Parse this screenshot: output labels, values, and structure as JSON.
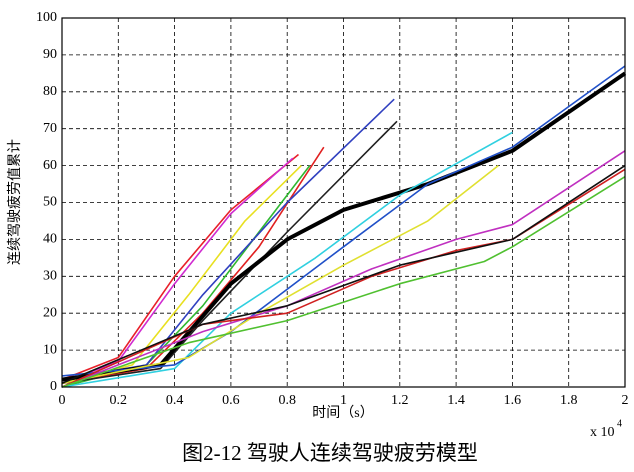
{
  "chart_data": {
    "type": "line",
    "title": "图2-12 驾驶人连续驾驶疲劳模型",
    "x_label": "时间（s）",
    "y_label": "连续驾驶疲劳值累计",
    "x_multiplier": "x 10",
    "x_multiplier_exp": "4",
    "xlim": [
      0,
      2
    ],
    "ylim": [
      0,
      100
    ],
    "xticks": [
      0,
      0.2,
      0.4,
      0.6,
      0.8,
      1,
      1.2,
      1.4,
      1.6,
      1.8,
      2
    ],
    "yticks": [
      0,
      10,
      20,
      30,
      40,
      50,
      60,
      70,
      80,
      90,
      100
    ],
    "grid": true,
    "series": [
      {
        "color": "#e8202a",
        "x": [
          0,
          0.2,
          0.4,
          0.6,
          0.84
        ],
        "values": [
          2,
          8,
          30,
          48,
          63
        ]
      },
      {
        "color": "#d02ad0",
        "x": [
          0,
          0.2,
          0.4,
          0.6,
          0.82
        ],
        "values": [
          1,
          7,
          28,
          47,
          62
        ]
      },
      {
        "color": "#e8e020",
        "x": [
          0,
          0.25,
          0.45,
          0.65,
          0.85
        ],
        "values": [
          1,
          6,
          25,
          45,
          60
        ]
      },
      {
        "color": "#30b830",
        "x": [
          0,
          0.3,
          0.5,
          0.7,
          0.88
        ],
        "values": [
          0,
          6,
          22,
          42,
          60
        ]
      },
      {
        "color": "#e02020",
        "x": [
          0,
          0.3,
          0.5,
          0.7,
          0.93
        ],
        "values": [
          1,
          5,
          20,
          38,
          65
        ]
      },
      {
        "color": "#3040c0",
        "x": [
          0,
          0.3,
          0.5,
          0.8,
          1.18
        ],
        "values": [
          2,
          6,
          25,
          50,
          78
        ]
      },
      {
        "color": "#202020",
        "x": [
          0,
          0.35,
          0.5,
          0.8,
          1.19
        ],
        "values": [
          1,
          5,
          18,
          42,
          72
        ]
      },
      {
        "color": "#000000",
        "width": 4,
        "x": [
          0,
          0.35,
          0.6,
          0.8,
          1,
          1.3,
          1.6,
          2
        ],
        "values": [
          2,
          6,
          28,
          40,
          48,
          55,
          64,
          85
        ]
      },
      {
        "color": "#30d0e0",
        "x": [
          0,
          0.4,
          0.6,
          0.9,
          1.2,
          1.6
        ],
        "values": [
          0,
          5,
          20,
          35,
          52,
          69
        ]
      },
      {
        "color": "#2050c8",
        "x": [
          0,
          0.4,
          0.6,
          1,
          1.3,
          1.6,
          2
        ],
        "values": [
          3,
          6,
          15,
          38,
          55,
          65,
          87
        ]
      },
      {
        "color": "#e0e030",
        "x": [
          0,
          0.45,
          0.7,
          1,
          1.3,
          1.55
        ],
        "values": [
          1,
          8,
          20,
          33,
          45,
          60
        ]
      },
      {
        "color": "#c030c0",
        "x": [
          0,
          0.5,
          0.8,
          1.1,
          1.4,
          1.6,
          2
        ],
        "values": [
          0,
          15,
          22,
          32,
          40,
          44,
          64
        ]
      },
      {
        "color": "#d02020",
        "x": [
          0,
          0.5,
          0.8,
          1.1,
          1.4,
          1.6,
          2
        ],
        "values": [
          0,
          17,
          20,
          30,
          37,
          40,
          59
        ]
      },
      {
        "color": "#50c030",
        "x": [
          0,
          0.45,
          0.8,
          1.2,
          1.5,
          1.6,
          2
        ],
        "values": [
          0,
          12,
          18,
          28,
          34,
          38,
          57
        ]
      },
      {
        "color": "#101010",
        "x": [
          0,
          0.5,
          0.8,
          1.2,
          1.6,
          2
        ],
        "values": [
          1,
          17,
          22,
          33,
          40,
          60
        ]
      }
    ]
  }
}
